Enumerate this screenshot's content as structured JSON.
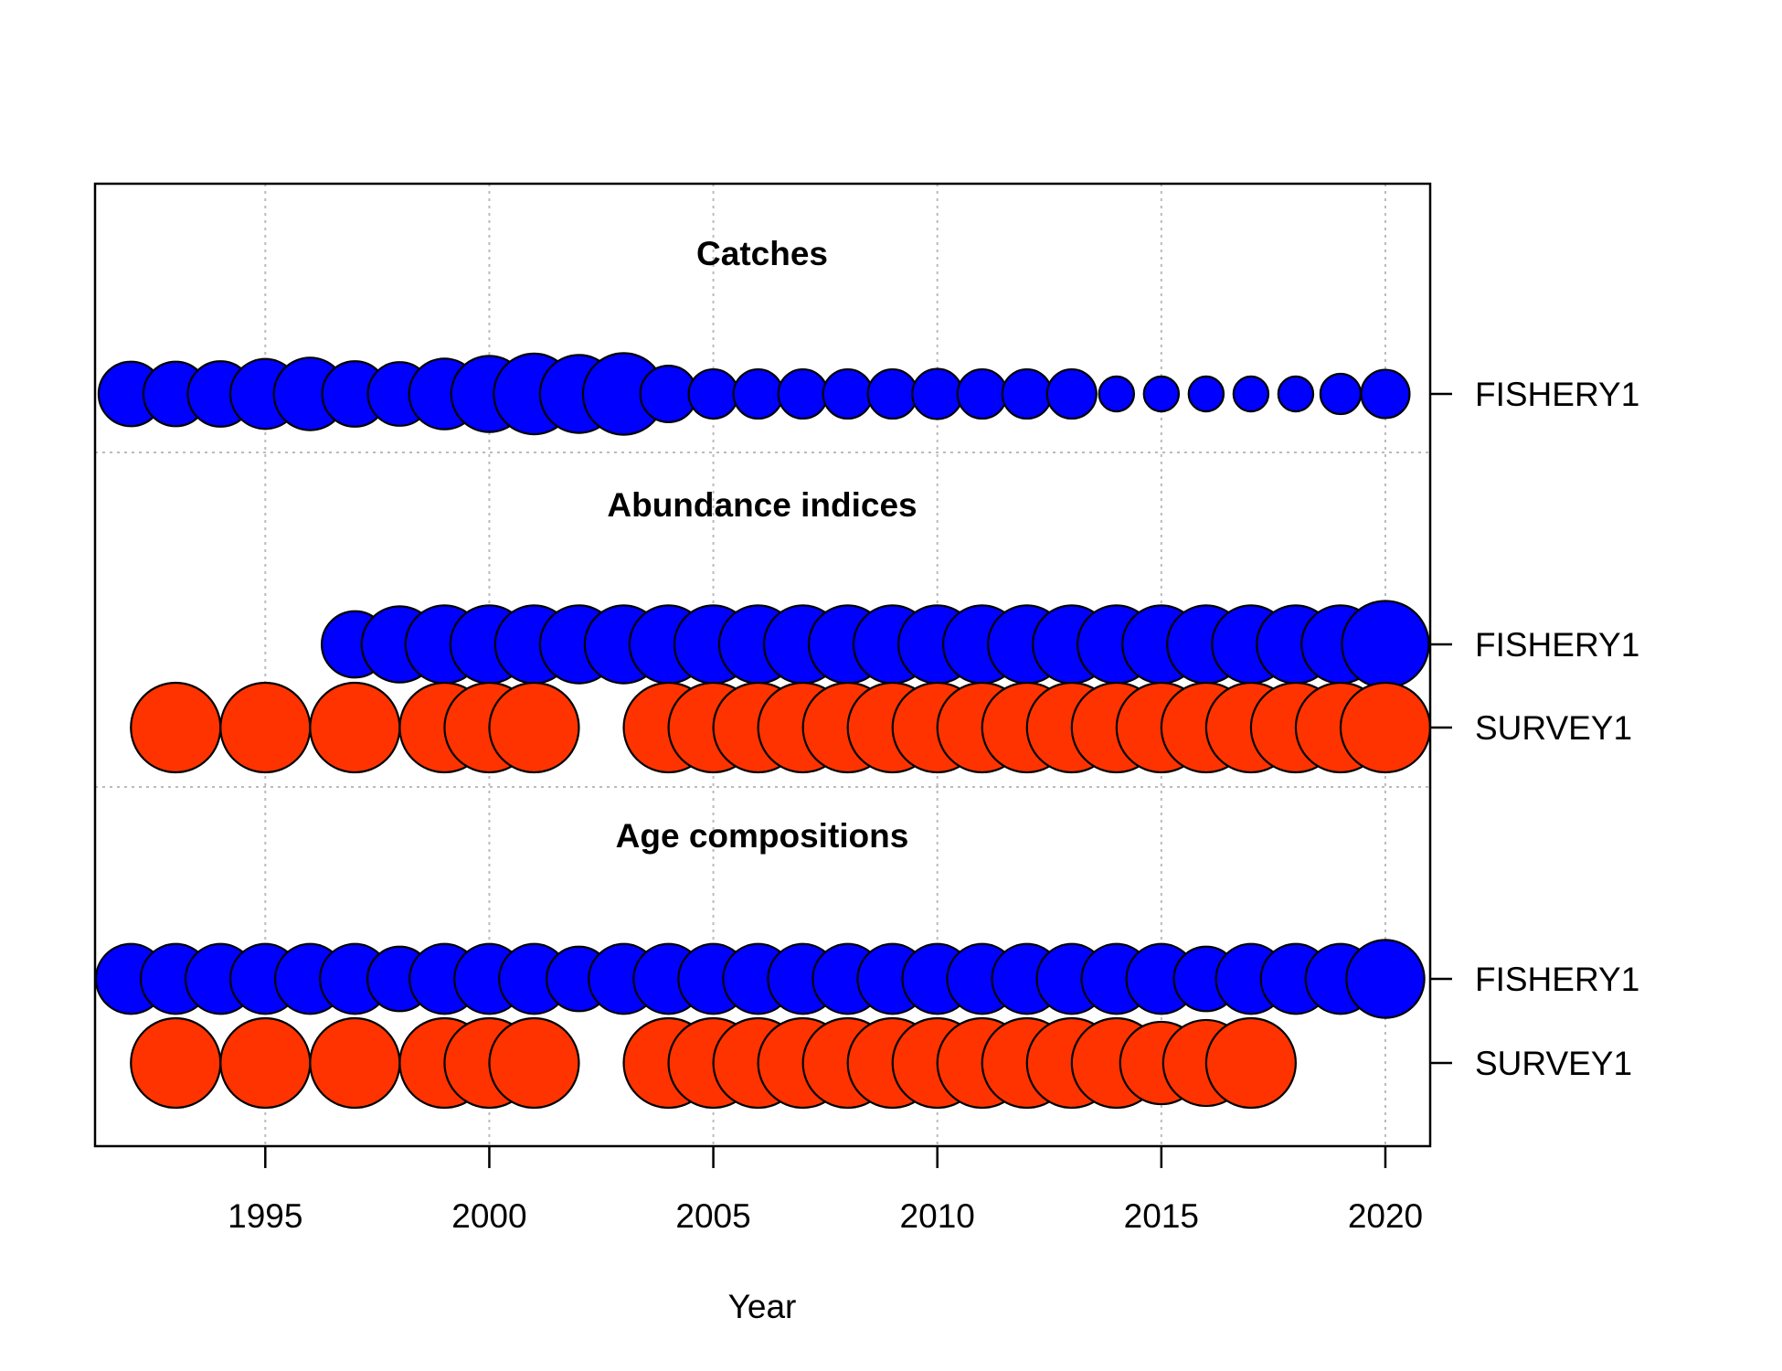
{
  "chart_data": {
    "type": "scatter",
    "xlabel": "Year",
    "xlim": [
      1991.2,
      2021.0
    ],
    "x_ticks": [
      1995,
      2000,
      2005,
      2010,
      2015,
      2020
    ],
    "grid": true,
    "colors": {
      "fishery": "#0000FF",
      "survey": "#FF3300"
    },
    "sections": [
      {
        "title": "Catches",
        "series": [
          {
            "name": "FISHERY1",
            "color": "#0000FF",
            "years": [
              1992,
              1993,
              1994,
              1995,
              1996,
              1997,
              1998,
              1999,
              2000,
              2001,
              2002,
              2003,
              2004,
              2005,
              2006,
              2007,
              2008,
              2009,
              2010,
              2011,
              2012,
              2013,
              2014,
              2015,
              2016,
              2017,
              2018,
              2019,
              2020
            ],
            "relative_size": [
              0.72,
              0.72,
              0.73,
              0.78,
              0.81,
              0.73,
              0.71,
              0.79,
              0.85,
              0.9,
              0.87,
              0.91,
              0.63,
              0.55,
              0.55,
              0.55,
              0.55,
              0.55,
              0.56,
              0.55,
              0.55,
              0.55,
              0.39,
              0.39,
              0.39,
              0.39,
              0.39,
              0.45,
              0.54
            ]
          }
        ]
      },
      {
        "title": "Abundance indices",
        "series": [
          {
            "name": "FISHERY1",
            "color": "#0000FF",
            "years": [
              1997,
              1998,
              1999,
              2000,
              2001,
              2002,
              2003,
              2004,
              2005,
              2006,
              2007,
              2008,
              2009,
              2010,
              2011,
              2012,
              2013,
              2014,
              2015,
              2016,
              2017,
              2018,
              2019,
              2020
            ],
            "relative_size": [
              0.74,
              0.85,
              0.87,
              0.87,
              0.87,
              0.87,
              0.87,
              0.87,
              0.87,
              0.87,
              0.87,
              0.87,
              0.87,
              0.87,
              0.87,
              0.87,
              0.87,
              0.87,
              0.87,
              0.87,
              0.87,
              0.87,
              0.87,
              0.97
            ]
          },
          {
            "name": "SURVEY1",
            "color": "#FF3300",
            "years": [
              1993,
              1995,
              1997,
              1999,
              2000,
              2001,
              2004,
              2005,
              2006,
              2007,
              2008,
              2009,
              2010,
              2011,
              2012,
              2013,
              2014,
              2015,
              2016,
              2017,
              2018,
              2019,
              2020
            ],
            "relative_size": [
              1,
              1,
              1,
              1,
              1,
              1,
              1,
              1,
              1,
              1,
              1,
              1,
              1,
              1,
              1,
              1,
              1,
              1,
              1,
              1,
              1,
              1,
              1
            ]
          }
        ]
      },
      {
        "title": "Age compositions",
        "series": [
          {
            "name": "FISHERY1",
            "color": "#0000FF",
            "years": [
              1992,
              1993,
              1994,
              1995,
              1996,
              1997,
              1998,
              1999,
              2000,
              2001,
              2002,
              2003,
              2004,
              2005,
              2006,
              2007,
              2008,
              2009,
              2010,
              2011,
              2012,
              2013,
              2014,
              2015,
              2016,
              2017,
              2018,
              2019,
              2020
            ],
            "relative_size": [
              0.78,
              0.78,
              0.78,
              0.78,
              0.78,
              0.78,
              0.72,
              0.78,
              0.78,
              0.78,
              0.72,
              0.78,
              0.78,
              0.78,
              0.78,
              0.78,
              0.78,
              0.78,
              0.78,
              0.78,
              0.78,
              0.78,
              0.78,
              0.78,
              0.72,
              0.78,
              0.78,
              0.78,
              0.87
            ]
          },
          {
            "name": "SURVEY1",
            "color": "#FF3300",
            "years": [
              1993,
              1995,
              1997,
              1999,
              2000,
              2001,
              2004,
              2005,
              2006,
              2007,
              2008,
              2009,
              2010,
              2011,
              2012,
              2013,
              2014,
              2015,
              2016,
              2017
            ],
            "relative_size": [
              1,
              1,
              1,
              1,
              1,
              1,
              1,
              1,
              1,
              1,
              1,
              1,
              1,
              1,
              1,
              1,
              1,
              0.92,
              0.96,
              1
            ]
          }
        ]
      }
    ]
  }
}
